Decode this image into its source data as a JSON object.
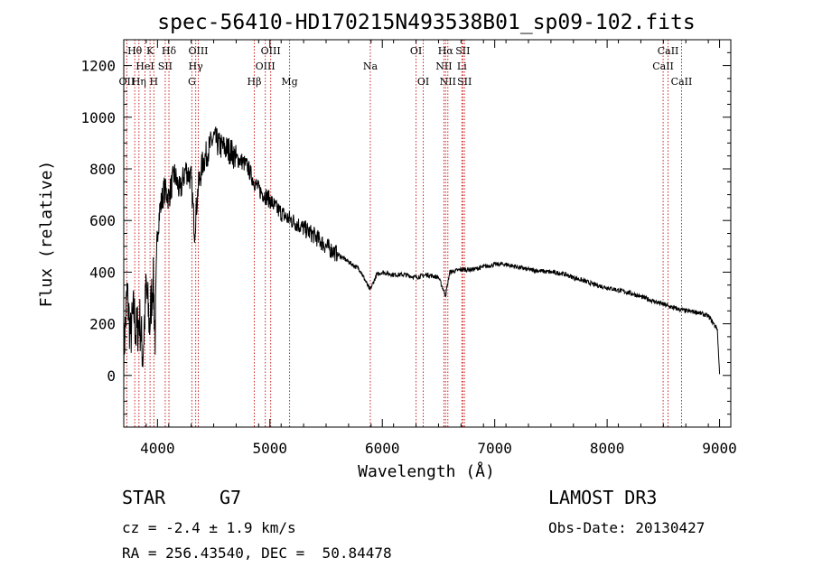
{
  "chart_data": {
    "type": "line",
    "title": "spec-56410-HD170215N493538B01_sp09-102.fits",
    "xlabel": "Wavelength (Å)",
    "ylabel": "Flux (relative)",
    "xlim": [
      3700,
      9100
    ],
    "ylim": [
      -200,
      1300
    ],
    "xticks": [
      4000,
      5000,
      6000,
      7000,
      8000,
      9000
    ],
    "yticks": [
      0,
      200,
      400,
      600,
      800,
      1000,
      1200
    ],
    "grid": false,
    "series": [
      {
        "name": "spectrum",
        "points": [
          [
            3700,
            80
          ],
          [
            3730,
            320
          ],
          [
            3760,
            150
          ],
          [
            3790,
            250
          ],
          [
            3810,
            160
          ],
          [
            3840,
            220
          ],
          [
            3870,
            80
          ],
          [
            3900,
            340
          ],
          [
            3930,
            190
          ],
          [
            3960,
            380
          ],
          [
            3980,
            160
          ],
          [
            4000,
            560
          ],
          [
            4020,
            640
          ],
          [
            4060,
            720
          ],
          [
            4100,
            690
          ],
          [
            4150,
            780
          ],
          [
            4200,
            710
          ],
          [
            4250,
            800
          ],
          [
            4300,
            760
          ],
          [
            4330,
            560
          ],
          [
            4360,
            720
          ],
          [
            4400,
            820
          ],
          [
            4450,
            870
          ],
          [
            4500,
            920
          ],
          [
            4550,
            890
          ],
          [
            4600,
            880
          ],
          [
            4650,
            870
          ],
          [
            4700,
            840
          ],
          [
            4750,
            830
          ],
          [
            4800,
            810
          ],
          [
            4850,
            760
          ],
          [
            4900,
            720
          ],
          [
            4950,
            700
          ],
          [
            5000,
            680
          ],
          [
            5050,
            650
          ],
          [
            5100,
            630
          ],
          [
            5150,
            610
          ],
          [
            5200,
            600
          ],
          [
            5300,
            570
          ],
          [
            5400,
            540
          ],
          [
            5500,
            500
          ],
          [
            5600,
            470
          ],
          [
            5700,
            440
          ],
          [
            5800,
            410
          ],
          [
            5890,
            330
          ],
          [
            5950,
            390
          ],
          [
            6000,
            400
          ],
          [
            6100,
            390
          ],
          [
            6200,
            390
          ],
          [
            6300,
            380
          ],
          [
            6400,
            390
          ],
          [
            6500,
            380
          ],
          [
            6563,
            310
          ],
          [
            6600,
            400
          ],
          [
            6700,
            410
          ],
          [
            6800,
            410
          ],
          [
            6900,
            420
          ],
          [
            7000,
            430
          ],
          [
            7100,
            430
          ],
          [
            7200,
            420
          ],
          [
            7300,
            410
          ],
          [
            7400,
            405
          ],
          [
            7500,
            400
          ],
          [
            7600,
            395
          ],
          [
            7700,
            380
          ],
          [
            7800,
            365
          ],
          [
            7900,
            350
          ],
          [
            8000,
            340
          ],
          [
            8100,
            330
          ],
          [
            8200,
            320
          ],
          [
            8300,
            305
          ],
          [
            8400,
            290
          ],
          [
            8500,
            275
          ],
          [
            8600,
            260
          ],
          [
            8700,
            250
          ],
          [
            8800,
            245
          ],
          [
            8900,
            230
          ],
          [
            8980,
            180
          ],
          [
            9000,
            5
          ]
        ]
      }
    ],
    "lines": [
      {
        "label": "Hθ",
        "wave": 3798,
        "row": 0
      },
      {
        "label": "OII",
        "wave": 3727,
        "row": 2
      },
      {
        "label": "Hη",
        "wave": 3835,
        "row": 2
      },
      {
        "label": "K",
        "wave": 3934,
        "row": 0
      },
      {
        "label": "H",
        "wave": 3968,
        "row": 2
      },
      {
        "label": "Hδ",
        "wave": 4102,
        "row": 0
      },
      {
        "label": "HeI",
        "wave": 3889,
        "row": 1
      },
      {
        "label": "SII",
        "wave": 4069,
        "row": 1
      },
      {
        "label": "OIII",
        "wave": 4363,
        "row": 0
      },
      {
        "label": "Hγ",
        "wave": 4340,
        "row": 1
      },
      {
        "label": "G",
        "wave": 4306,
        "row": 2
      },
      {
        "label": "Hβ",
        "wave": 4861,
        "row": 2
      },
      {
        "label": "OIII",
        "wave": 5007,
        "row": 0
      },
      {
        "label": "OIII",
        "wave": 4959,
        "row": 1
      },
      {
        "label": "Mg",
        "wave": 5175,
        "row": 2
      },
      {
        "label": "Na",
        "wave": 5893,
        "row": 1
      },
      {
        "label": "OI",
        "wave": 6300,
        "row": 0
      },
      {
        "label": "OI",
        "wave": 6364,
        "row": 2
      },
      {
        "label": "Hα",
        "wave": 6563,
        "row": 0
      },
      {
        "label": "NII",
        "wave": 6548,
        "row": 1
      },
      {
        "label": "NII",
        "wave": 6583,
        "row": 2
      },
      {
        "label": "SII",
        "wave": 6716,
        "row": 0
      },
      {
        "label": "Li",
        "wave": 6708,
        "row": 1
      },
      {
        "label": "SII",
        "wave": 6731,
        "row": 2
      },
      {
        "label": "CaII",
        "wave": 8542,
        "row": 0
      },
      {
        "label": "CaII",
        "wave": 8498,
        "row": 1
      },
      {
        "label": "CaII",
        "wave": 8662,
        "row": 2
      }
    ],
    "line_color": "#cc2222"
  },
  "info": {
    "class_label": "STAR",
    "subclass": "G7",
    "survey": "LAMOST DR3",
    "cz": "cz = -2.4 ± 1.9 km/s",
    "obs_date": "Obs-Date: 20130427",
    "coords": "RA = 256.43540, DEC =  50.84478"
  }
}
